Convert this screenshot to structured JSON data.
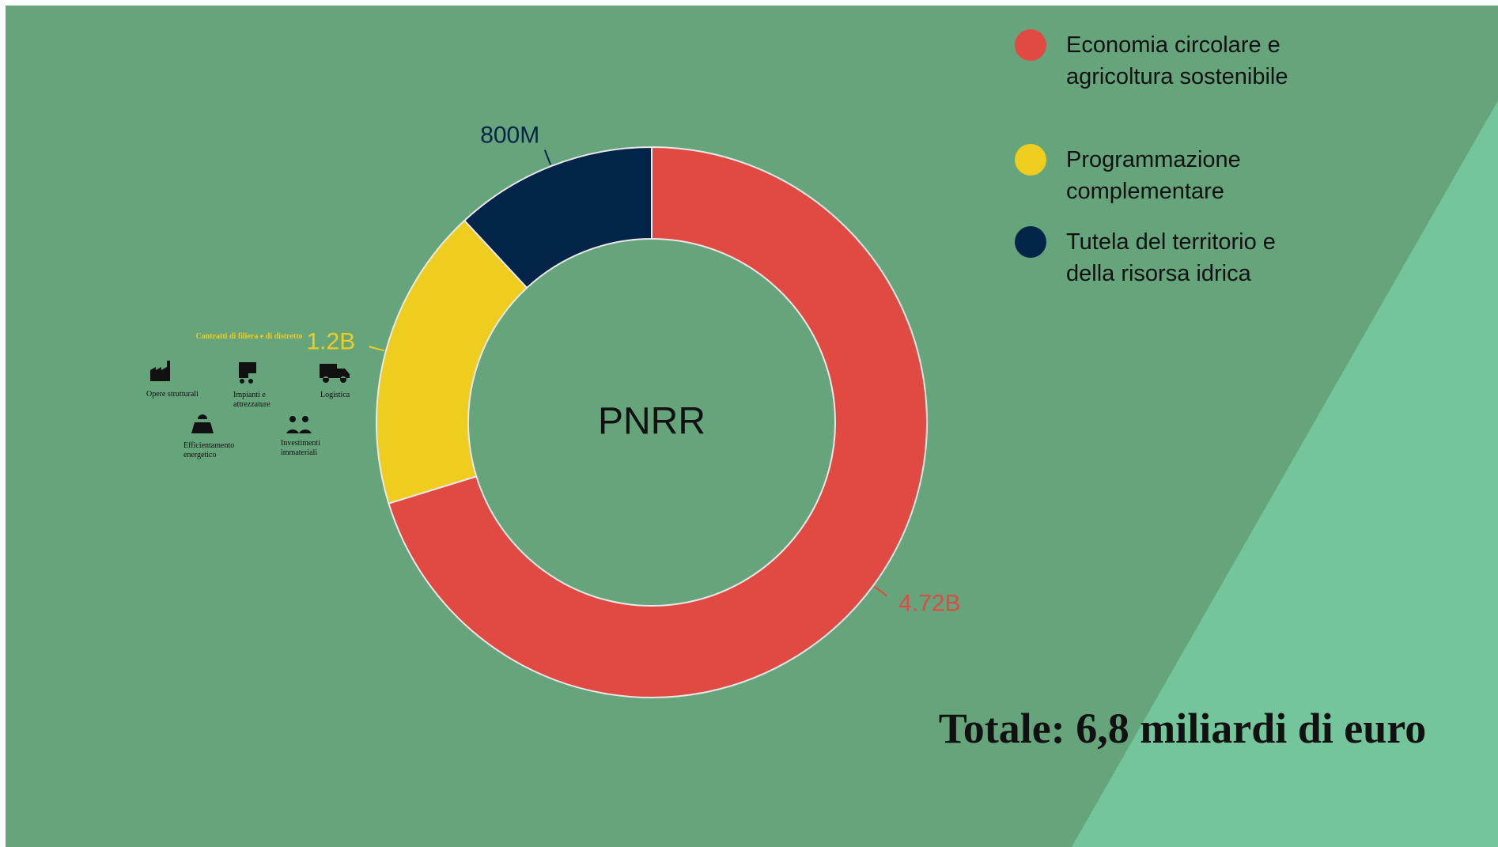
{
  "chart_data": {
    "type": "donut",
    "center_label": "PNRR",
    "categories": [
      "Economia circolare e agricoltura sostenibile",
      "Programmazione complementare",
      "Tutela del territorio e della risorsa idrica"
    ],
    "values": [
      4720000000,
      1200000000,
      800000000
    ],
    "value_labels": [
      "4.72B",
      "1.2B",
      "800M"
    ],
    "colors": [
      "#e04a43",
      "#efcd1e",
      "#022448"
    ],
    "legend": "top-right",
    "annotation": "Totale: 6,8 miliardi di euro"
  },
  "infobox": {
    "title": "Contratti di filiera e di distretto",
    "items": [
      "Opere strutturali",
      "Impianti e attrezzature",
      "Logistica",
      "Efficientamento energetico",
      "Investimenti immateriali"
    ]
  }
}
